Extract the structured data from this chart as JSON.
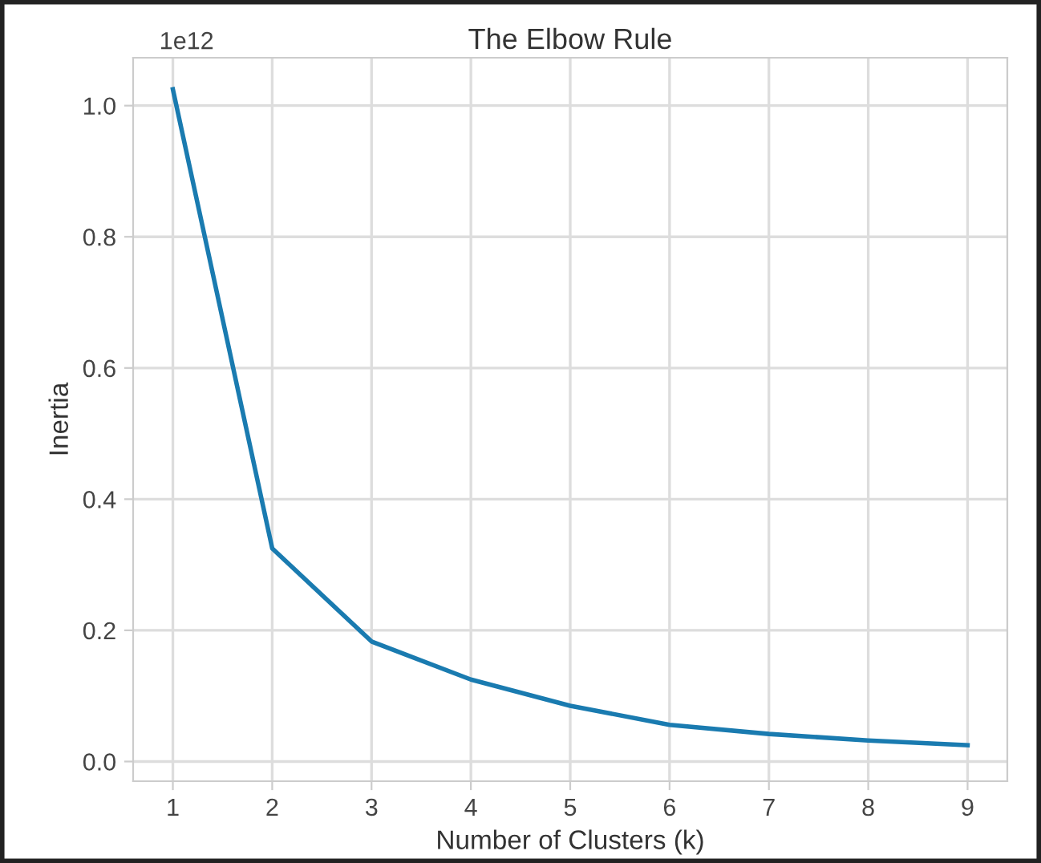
{
  "chart_data": {
    "type": "line",
    "title": "The Elbow Rule",
    "xlabel": "Number of Clusters (k)",
    "ylabel": "Inertia",
    "x": [
      1,
      2,
      3,
      4,
      5,
      6,
      7,
      8,
      9
    ],
    "series": [
      {
        "color": "#1a7bb0",
        "values": [
          1.025,
          0.325,
          0.183,
          0.125,
          0.085,
          0.056,
          0.042,
          0.032,
          0.025
        ]
      }
    ],
    "xlim": [
      0.6,
      9.4
    ],
    "xticks": [
      1,
      2,
      3,
      4,
      5,
      6,
      7,
      8,
      9
    ],
    "ylim": [
      -0.03,
      1.073
    ],
    "yticks": [
      {
        "value": 0,
        "label": "0.0"
      },
      0.2,
      0.4,
      0.6,
      0.8,
      {
        "value": 1,
        "label": "1.0"
      }
    ],
    "annotations": [
      "1e12"
    ],
    "grid": true,
    "marker": "none",
    "line_style": "solid"
  }
}
